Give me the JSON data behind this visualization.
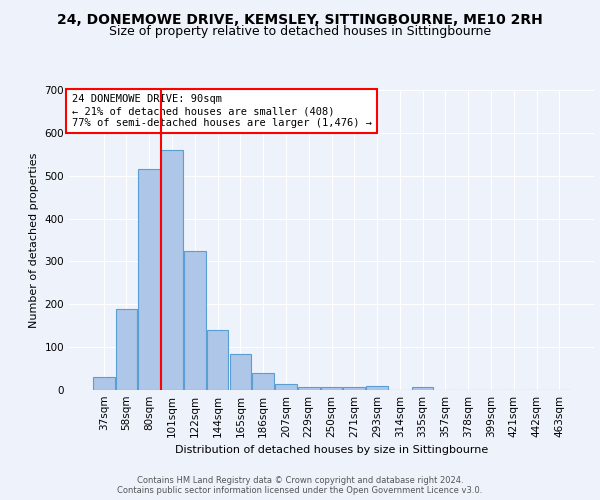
{
  "title1": "24, DONEMOWE DRIVE, KEMSLEY, SITTINGBOURNE, ME10 2RH",
  "title2": "Size of property relative to detached houses in Sittingbourne",
  "xlabel": "Distribution of detached houses by size in Sittingbourne",
  "ylabel": "Number of detached properties",
  "categories": [
    "37sqm",
    "58sqm",
    "80sqm",
    "101sqm",
    "122sqm",
    "144sqm",
    "165sqm",
    "186sqm",
    "207sqm",
    "229sqm",
    "250sqm",
    "271sqm",
    "293sqm",
    "314sqm",
    "335sqm",
    "357sqm",
    "378sqm",
    "399sqm",
    "421sqm",
    "442sqm",
    "463sqm"
  ],
  "values": [
    30,
    190,
    515,
    560,
    325,
    140,
    85,
    40,
    13,
    8,
    8,
    8,
    10,
    0,
    6,
    0,
    0,
    0,
    0,
    0,
    0
  ],
  "bar_color": "#aec6e8",
  "bar_edge_color": "#5a9fd4",
  "ylim": [
    0,
    700
  ],
  "yticks": [
    0,
    100,
    200,
    300,
    400,
    500,
    600,
    700
  ],
  "property_label": "24 DONEMOWE DRIVE: 90sqm",
  "annotation_line1": "← 21% of detached houses are smaller (408)",
  "annotation_line2": "77% of semi-detached houses are larger (1,476) →",
  "vline_position": 2.5,
  "footer1": "Contains HM Land Registry data © Crown copyright and database right 2024.",
  "footer2": "Contains public sector information licensed under the Open Government Licence v3.0.",
  "bg_color": "#eef3fb",
  "grid_color": "#ffffff",
  "title1_fontsize": 10,
  "title2_fontsize": 9,
  "axis_label_fontsize": 8,
  "tick_fontsize": 7.5,
  "annotation_fontsize": 7.5,
  "footer_fontsize": 6
}
